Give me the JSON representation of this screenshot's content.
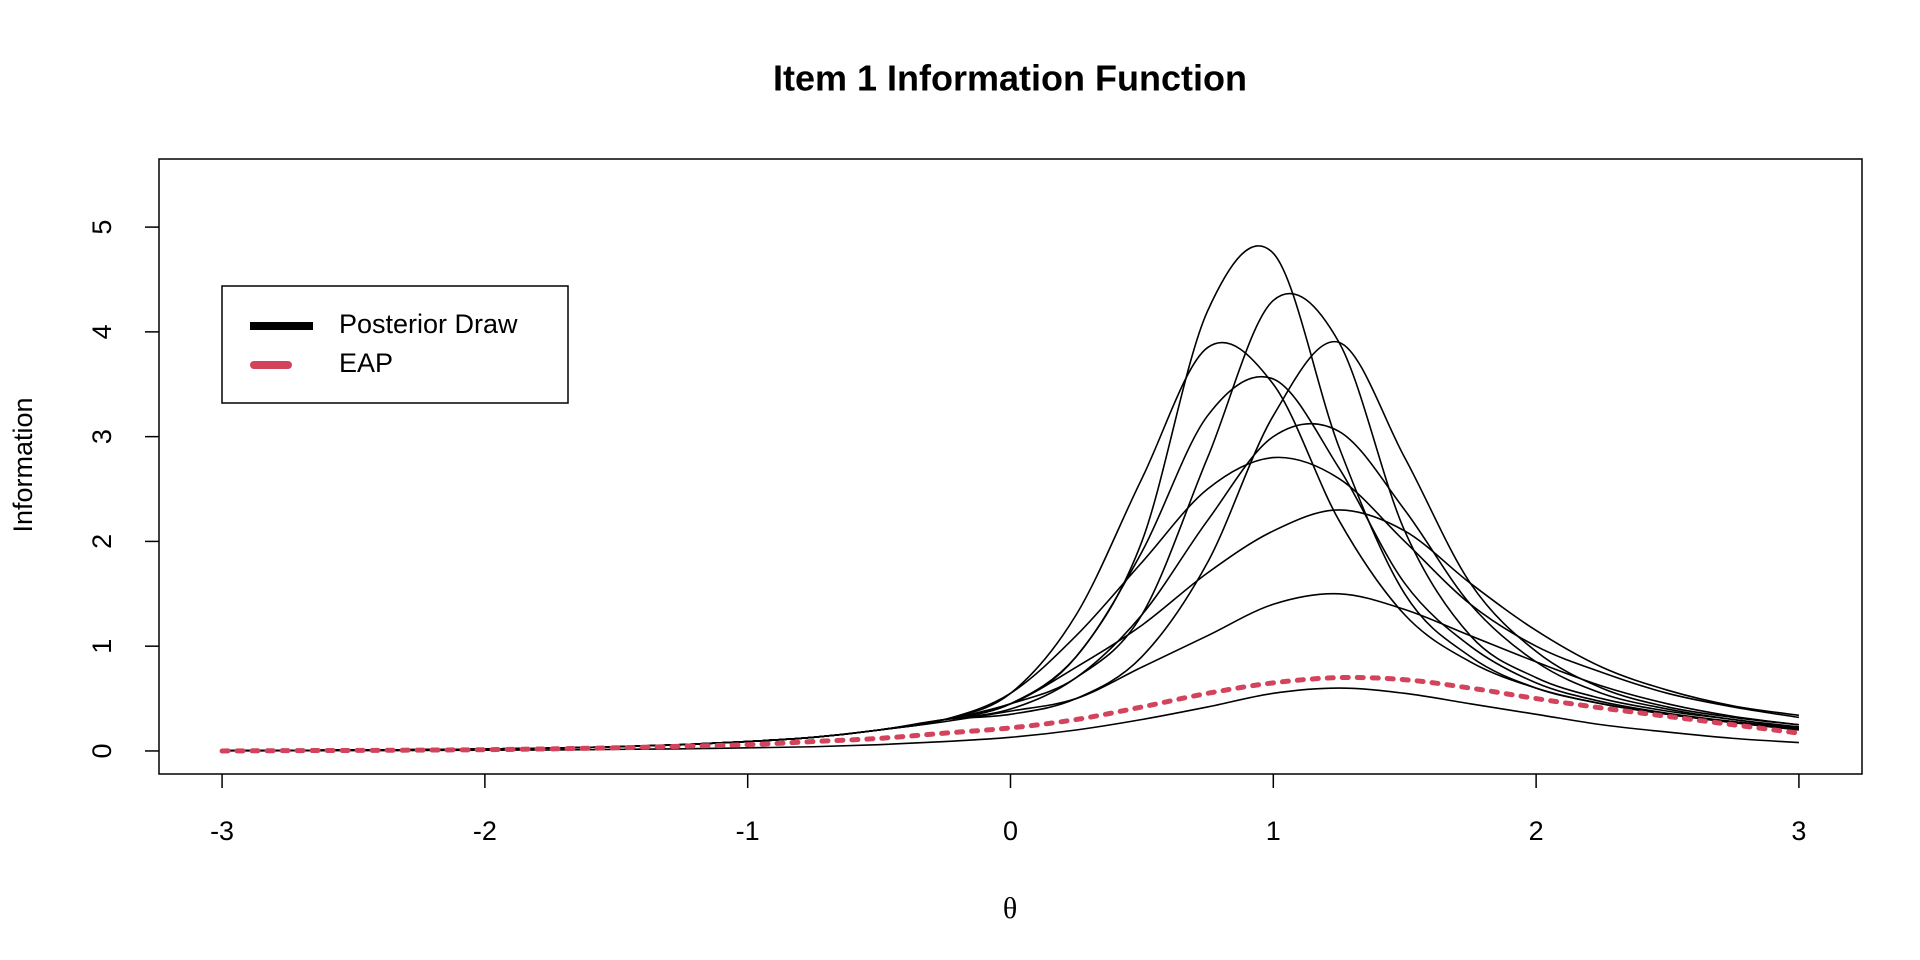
{
  "chart_data": {
    "type": "line",
    "title": "Item 1 Information Function",
    "x_label": "θ",
    "y_label": "Information",
    "x": [
      -3,
      -2.75,
      -2.5,
      -2.25,
      -2,
      -1.75,
      -1.5,
      -1.25,
      -1,
      -0.75,
      -0.5,
      -0.25,
      0,
      0.25,
      0.5,
      0.75,
      1,
      1.25,
      1.5,
      1.75,
      2,
      2.25,
      2.5,
      2.75,
      3
    ],
    "xlim": [
      -3.24,
      3.24
    ],
    "xticks": [
      -3,
      -2,
      -1,
      0,
      1,
      2,
      3
    ],
    "ylim": [
      -0.22,
      5.65
    ],
    "yticks": [
      0,
      1,
      2,
      3,
      4,
      5
    ],
    "legend": "top-left",
    "series": [
      {
        "name": "Posterior Draw",
        "color": "#000000",
        "draws": [
          [
            0.003,
            0.005,
            0.008,
            0.012,
            0.018,
            0.027,
            0.04,
            0.06,
            0.09,
            0.13,
            0.2,
            0.3,
            0.45,
            0.9,
            2.0,
            4.2,
            4.75,
            2.9,
            1.5,
            0.9,
            0.6,
            0.45,
            0.35,
            0.27,
            0.2
          ],
          [
            0.003,
            0.005,
            0.008,
            0.012,
            0.018,
            0.027,
            0.04,
            0.06,
            0.09,
            0.13,
            0.2,
            0.3,
            0.45,
            0.7,
            1.3,
            2.8,
            4.3,
            3.9,
            2.1,
            1.1,
            0.7,
            0.5,
            0.38,
            0.3,
            0.22
          ],
          [
            0.003,
            0.005,
            0.008,
            0.012,
            0.018,
            0.027,
            0.04,
            0.06,
            0.09,
            0.13,
            0.2,
            0.3,
            0.55,
            1.3,
            2.6,
            3.85,
            3.5,
            2.2,
            1.3,
            0.85,
            0.6,
            0.45,
            0.35,
            0.28,
            0.22
          ],
          [
            0.003,
            0.005,
            0.008,
            0.012,
            0.018,
            0.027,
            0.04,
            0.06,
            0.09,
            0.13,
            0.2,
            0.3,
            0.35,
            0.5,
            0.9,
            1.8,
            3.2,
            3.9,
            2.8,
            1.6,
            0.95,
            0.6,
            0.42,
            0.32,
            0.25
          ],
          [
            0.003,
            0.005,
            0.008,
            0.012,
            0.018,
            0.027,
            0.04,
            0.06,
            0.09,
            0.13,
            0.2,
            0.3,
            0.45,
            0.9,
            1.9,
            3.2,
            3.55,
            2.7,
            1.6,
            1.0,
            0.65,
            0.47,
            0.36,
            0.28,
            0.21
          ],
          [
            0.003,
            0.005,
            0.008,
            0.012,
            0.018,
            0.027,
            0.04,
            0.06,
            0.09,
            0.13,
            0.2,
            0.3,
            0.55,
            1.1,
            1.8,
            2.5,
            2.8,
            2.6,
            2.0,
            1.4,
            1.0,
            0.75,
            0.55,
            0.42,
            0.32
          ],
          [
            0.003,
            0.005,
            0.008,
            0.012,
            0.018,
            0.027,
            0.04,
            0.06,
            0.09,
            0.13,
            0.2,
            0.3,
            0.45,
            0.8,
            1.2,
            1.7,
            2.1,
            2.3,
            2.1,
            1.6,
            1.15,
            0.8,
            0.58,
            0.43,
            0.34
          ],
          [
            0.003,
            0.005,
            0.008,
            0.012,
            0.018,
            0.027,
            0.04,
            0.06,
            0.09,
            0.13,
            0.2,
            0.3,
            0.4,
            0.7,
            1.3,
            2.2,
            3.0,
            3.05,
            2.3,
            1.4,
            0.85,
            0.55,
            0.4,
            0.3,
            0.23
          ],
          [
            0.003,
            0.005,
            0.008,
            0.012,
            0.018,
            0.027,
            0.04,
            0.06,
            0.09,
            0.13,
            0.2,
            0.28,
            0.38,
            0.5,
            0.8,
            1.1,
            1.4,
            1.5,
            1.35,
            1.1,
            0.85,
            0.62,
            0.45,
            0.33,
            0.25
          ],
          [
            0.001,
            0.002,
            0.003,
            0.005,
            0.007,
            0.01,
            0.015,
            0.02,
            0.03,
            0.04,
            0.06,
            0.09,
            0.13,
            0.2,
            0.3,
            0.42,
            0.55,
            0.6,
            0.55,
            0.45,
            0.35,
            0.25,
            0.18,
            0.12,
            0.08
          ]
        ]
      },
      {
        "name": "EAP",
        "color": "#d3435c",
        "dashed": true,
        "values": [
          0,
          0.003,
          0.005,
          0.008,
          0.012,
          0.02,
          0.03,
          0.045,
          0.06,
          0.09,
          0.12,
          0.17,
          0.22,
          0.3,
          0.42,
          0.55,
          0.65,
          0.7,
          0.68,
          0.6,
          0.5,
          0.41,
          0.33,
          0.25,
          0.17
        ]
      }
    ]
  }
}
